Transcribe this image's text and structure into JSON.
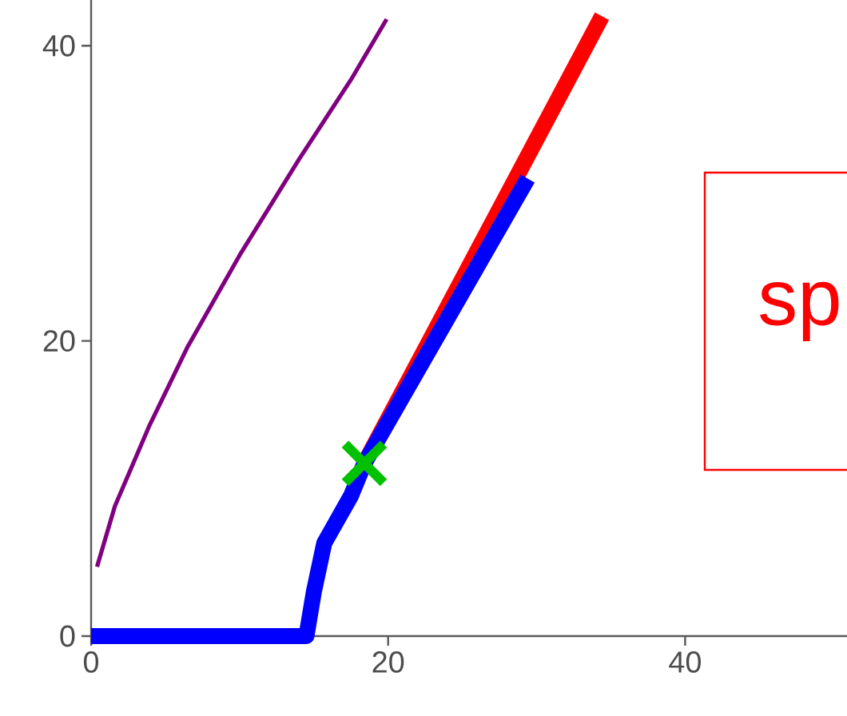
{
  "chart_data": {
    "type": "line",
    "xlim": [
      0,
      50.9
    ],
    "ylim": [
      0,
      43.1
    ],
    "xticks": [
      0,
      20,
      40
    ],
    "yticks": [
      0,
      20,
      40
    ],
    "grid": false,
    "annotations": [
      "sp"
    ],
    "series": [
      {
        "color": "#800080",
        "x": [
          0.4,
          1.6,
          3.9,
          6.5,
          10,
          14,
          17.5,
          19.9
        ],
        "values": [
          4.7,
          8.8,
          14.2,
          19.6,
          25.8,
          32.3,
          37.7,
          41.8
        ]
      },
      {
        "color": "#ff0000",
        "x": [
          18.4,
          34.4
        ],
        "values": [
          11.7,
          42
        ]
      },
      {
        "color": "#0000ff",
        "x": [
          0,
          14.5,
          15.0,
          15.7,
          17.5,
          18.4,
          29.4
        ],
        "values": [
          0,
          0,
          3.0,
          6.3,
          9.5,
          11.7,
          31
        ]
      },
      {
        "type": "scatter",
        "color": "#00c000",
        "marker": "cross",
        "x": [
          18.4
        ],
        "values": [
          11.7
        ]
      }
    ]
  }
}
